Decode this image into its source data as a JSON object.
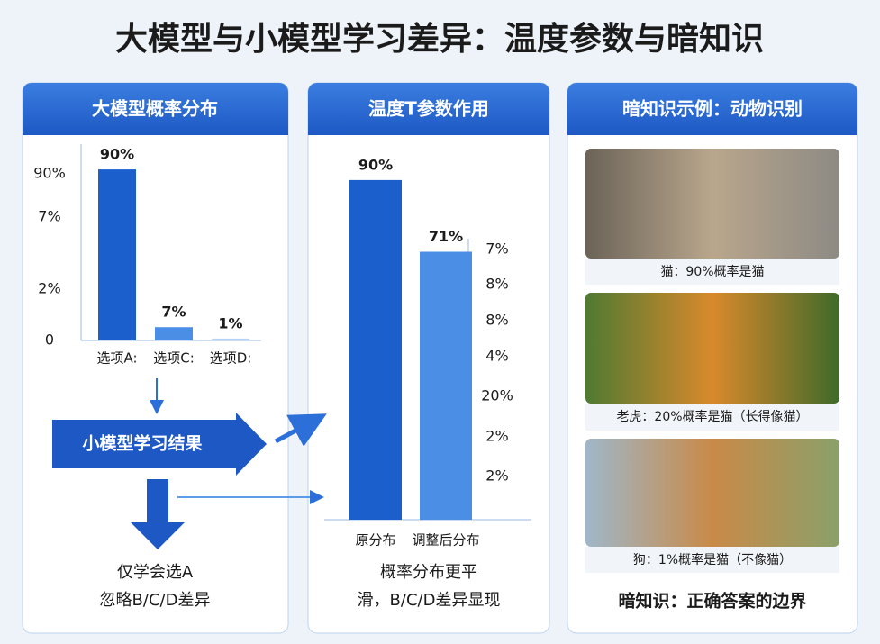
{
  "title": "大模型与小模型学习差异：温度参数与暗知识",
  "panels": [
    {
      "title": "大模型概率分布",
      "chart": {
        "type": "bar",
        "categories": [
          "选项A:",
          "选项C:",
          "选项D:"
        ],
        "values": [
          90,
          7,
          1
        ],
        "value_labels": [
          "90%",
          "7%",
          "1%"
        ],
        "colors": [
          "#1b5fcc",
          "#4a8ee6",
          "#b6d3f6"
        ],
        "ylim": [
          0,
          100
        ],
        "axis_labels": [
          "90%",
          "7%",
          "2%",
          "0"
        ]
      },
      "flow": {
        "box": "小模型学习结果",
        "result": [
          "仅学会选A",
          "忽略B/C/D差异"
        ]
      }
    },
    {
      "title": "温度T参数作用",
      "chart": {
        "type": "bar",
        "categories": [
          "原分布",
          "调整后分布"
        ],
        "values": [
          90,
          71
        ],
        "value_labels": [
          "90%",
          "71%"
        ],
        "colors": [
          "#1b5fcc",
          "#4a8ee6"
        ],
        "ylim": [
          0,
          100
        ],
        "axis_labels": [
          "7%",
          "8%",
          "8%",
          "4%",
          "20%",
          "2%",
          "2%"
        ]
      },
      "caption": [
        "概率分布更平",
        "滑，B/C/D差异显现"
      ]
    },
    {
      "title": "暗知识示例：动物识别",
      "images": [
        {
          "label": "猫：90%概率是猫"
        },
        {
          "label": "老虎：20%概率是猫（长得像猫）"
        },
        {
          "label": "狗：1%概率是猫（不像猫）"
        }
      ],
      "caption": "暗知识：正确答案的边界"
    }
  ]
}
